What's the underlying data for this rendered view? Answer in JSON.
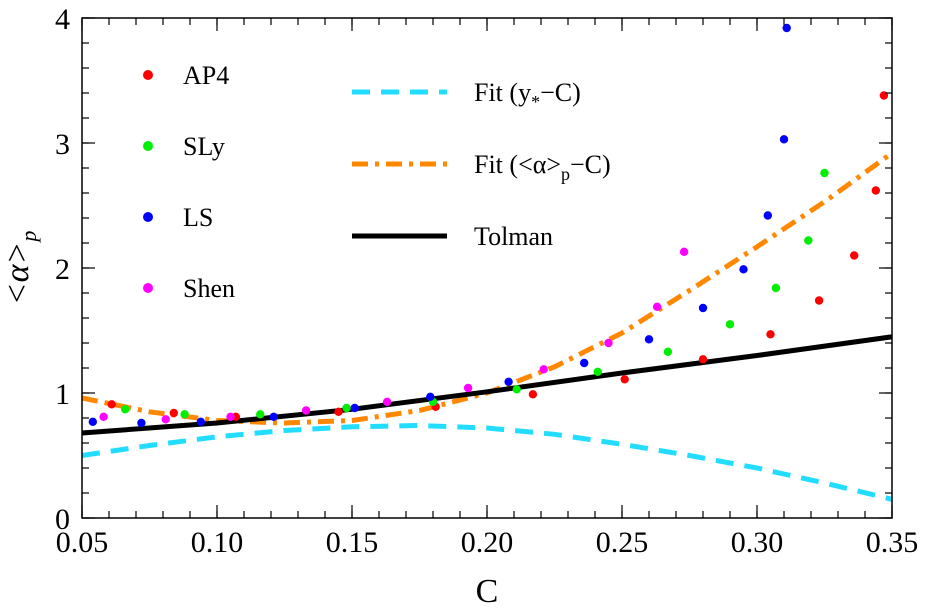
{
  "chart_data": {
    "type": "scatter",
    "xlabel": "C",
    "ylabel": "<α>",
    "ylabel_sub": "p",
    "xlim": [
      0.05,
      0.35
    ],
    "ylim": [
      0,
      4
    ],
    "xticks": [
      "0.05",
      "0.10",
      "0.15",
      "0.20",
      "0.25",
      "0.30",
      "0.35"
    ],
    "yticks": [
      "0",
      "1",
      "2",
      "3",
      "4"
    ],
    "grid": false,
    "series": [
      {
        "name": "AP4",
        "kind": "points",
        "color": "#ff0000",
        "points": [
          [
            0.061,
            0.91
          ],
          [
            0.084,
            0.84
          ],
          [
            0.107,
            0.81
          ],
          [
            0.145,
            0.85
          ],
          [
            0.181,
            0.89
          ],
          [
            0.217,
            0.99
          ],
          [
            0.251,
            1.11
          ],
          [
            0.28,
            1.27
          ],
          [
            0.305,
            1.47
          ],
          [
            0.323,
            1.74
          ],
          [
            0.336,
            2.1
          ],
          [
            0.344,
            2.62
          ],
          [
            0.347,
            3.38
          ]
        ]
      },
      {
        "name": "SLy",
        "kind": "points",
        "color": "#00ee00",
        "points": [
          [
            0.066,
            0.87
          ],
          [
            0.088,
            0.83
          ],
          [
            0.116,
            0.83
          ],
          [
            0.148,
            0.88
          ],
          [
            0.18,
            0.93
          ],
          [
            0.211,
            1.03
          ],
          [
            0.241,
            1.17
          ],
          [
            0.267,
            1.33
          ],
          [
            0.29,
            1.55
          ],
          [
            0.307,
            1.84
          ],
          [
            0.319,
            2.22
          ],
          [
            0.325,
            2.76
          ]
        ]
      },
      {
        "name": "LS",
        "kind": "points",
        "color": "#0000ff",
        "points": [
          [
            0.054,
            0.77
          ],
          [
            0.072,
            0.76
          ],
          [
            0.094,
            0.77
          ],
          [
            0.121,
            0.81
          ],
          [
            0.151,
            0.88
          ],
          [
            0.179,
            0.97
          ],
          [
            0.208,
            1.09
          ],
          [
            0.236,
            1.24
          ],
          [
            0.26,
            1.43
          ],
          [
            0.28,
            1.68
          ],
          [
            0.295,
            1.99
          ],
          [
            0.304,
            2.42
          ],
          [
            0.31,
            3.03
          ],
          [
            0.311,
            3.92
          ]
        ]
      },
      {
        "name": "Shen",
        "kind": "points",
        "color": "#ff00ff",
        "points": [
          [
            0.058,
            0.81
          ],
          [
            0.081,
            0.79
          ],
          [
            0.105,
            0.81
          ],
          [
            0.133,
            0.86
          ],
          [
            0.163,
            0.93
          ],
          [
            0.193,
            1.04
          ],
          [
            0.221,
            1.19
          ],
          [
            0.245,
            1.4
          ],
          [
            0.263,
            1.69
          ],
          [
            0.273,
            2.13
          ]
        ]
      },
      {
        "name": "Fit (y*−C)",
        "name_base": "Fit (y",
        "name_sub": "*",
        "name_tail": "−C)",
        "kind": "dashed",
        "color": "#22ddff",
        "points": [
          [
            0.05,
            0.5
          ],
          [
            0.075,
            0.58
          ],
          [
            0.1,
            0.65
          ],
          [
            0.125,
            0.7
          ],
          [
            0.15,
            0.73
          ],
          [
            0.175,
            0.74
          ],
          [
            0.2,
            0.72
          ],
          [
            0.225,
            0.67
          ],
          [
            0.25,
            0.59
          ],
          [
            0.275,
            0.5
          ],
          [
            0.3,
            0.4
          ],
          [
            0.325,
            0.28
          ],
          [
            0.35,
            0.15
          ]
        ]
      },
      {
        "name": "Fit (<α>p−C)",
        "name_base": "Fit (<α>",
        "name_sub": "p",
        "name_tail": "−C)",
        "kind": "dashdot",
        "color": "#ff8800",
        "points": [
          [
            0.05,
            0.96
          ],
          [
            0.075,
            0.85
          ],
          [
            0.1,
            0.78
          ],
          [
            0.125,
            0.76
          ],
          [
            0.15,
            0.78
          ],
          [
            0.175,
            0.86
          ],
          [
            0.2,
            1.0
          ],
          [
            0.225,
            1.21
          ],
          [
            0.25,
            1.48
          ],
          [
            0.275,
            1.82
          ],
          [
            0.3,
            2.17
          ],
          [
            0.325,
            2.53
          ],
          [
            0.35,
            2.92
          ]
        ]
      },
      {
        "name": "Tolman",
        "kind": "solid",
        "color": "#000000",
        "points": [
          [
            0.05,
            0.68
          ],
          [
            0.1,
            0.76
          ],
          [
            0.15,
            0.87
          ],
          [
            0.2,
            1.01
          ],
          [
            0.25,
            1.16
          ],
          [
            0.3,
            1.3
          ],
          [
            0.35,
            1.45
          ]
        ]
      }
    ],
    "legend": {
      "points_items": [
        0,
        1,
        2,
        3
      ],
      "line_items": [
        4,
        5,
        6
      ],
      "placement": "top-left"
    }
  }
}
